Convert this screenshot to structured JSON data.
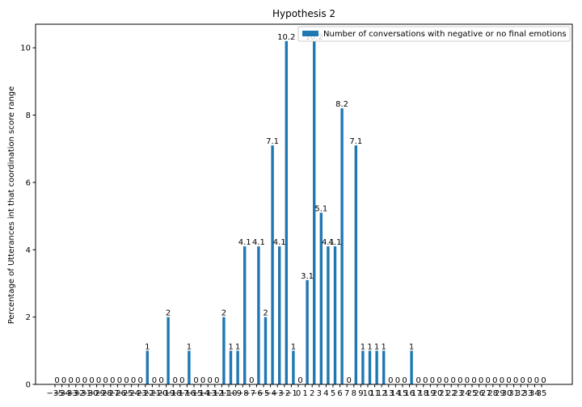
{
  "chart_data": {
    "type": "bar",
    "title": "Hypothesis 2",
    "xlabel": "",
    "ylabel": "Percentage of Utterances int that coordination score range",
    "ylim": [
      0,
      10.7
    ],
    "y_ticks": [
      0,
      2,
      4,
      6,
      8,
      10
    ],
    "legend_position": "top-right",
    "grid": false,
    "bar_color": "#1f77b4",
    "categories": [
      "-35",
      "-34",
      "-33",
      "-32",
      "-31",
      "-30",
      "-29",
      "-28",
      "-27",
      "-26",
      "-25",
      "-24",
      "-23",
      "-22",
      "-21",
      "-20",
      "-19",
      "-18",
      "-17",
      "-16",
      "-15",
      "-14",
      "-13",
      "-12",
      "-11",
      "-10",
      "-9",
      "-8",
      "-7",
      "-6",
      "-5",
      "-4",
      "-3",
      "-2",
      "-1",
      "0",
      "1",
      "2",
      "3",
      "4",
      "5",
      "6",
      "7",
      "8",
      "9",
      "10",
      "11",
      "12",
      "13",
      "14",
      "15",
      "16",
      "17",
      "18",
      "19",
      "20",
      "21",
      "22",
      "23",
      "24",
      "25",
      "26",
      "27",
      "28",
      "29",
      "30",
      "31",
      "32",
      "33",
      "34",
      "35"
    ],
    "series": [
      {
        "name": "Number of conversations with negative or no final emotions",
        "values": [
          0,
          0,
          0,
          0,
          0,
          0,
          0,
          0,
          0,
          0,
          0,
          0,
          0,
          1,
          0,
          0,
          2,
          0,
          0,
          1,
          0,
          0,
          0,
          0,
          2,
          1,
          1,
          4.1,
          0,
          4.1,
          2,
          7.1,
          4.1,
          10.2,
          1,
          0,
          3.1,
          10.2,
          5.1,
          4.1,
          4.1,
          8.2,
          0,
          7.1,
          1,
          1,
          1,
          1,
          0,
          0,
          0,
          1,
          0,
          0,
          0,
          0,
          0,
          0,
          0,
          0,
          0,
          0,
          0,
          0,
          0,
          0,
          0,
          0,
          0,
          0,
          0
        ],
        "labels": [
          "0",
          "0",
          "0",
          "0",
          "0",
          "0",
          "0",
          "0",
          "0",
          "0",
          "0",
          "0",
          "0",
          "1",
          "0",
          "0",
          "2",
          "0",
          "0",
          "1",
          "0",
          "0",
          "0",
          "0",
          "2",
          "1",
          "1",
          "4.1",
          "0",
          "4.1",
          "2",
          "7.1",
          "4.1",
          "10.2",
          "1",
          "0",
          "3.1",
          "10.2",
          "5.1",
          "4.1",
          "4.1",
          "8.2",
          "0",
          "7.1",
          "1",
          "1",
          "1",
          "1",
          "0",
          "0",
          "0",
          "1",
          "0",
          "0",
          "0",
          "0",
          "0",
          "0",
          "0",
          "0",
          "0",
          "0",
          "0",
          "0",
          "0",
          "0",
          "0",
          "0",
          "0",
          "0",
          "0"
        ]
      }
    ]
  }
}
